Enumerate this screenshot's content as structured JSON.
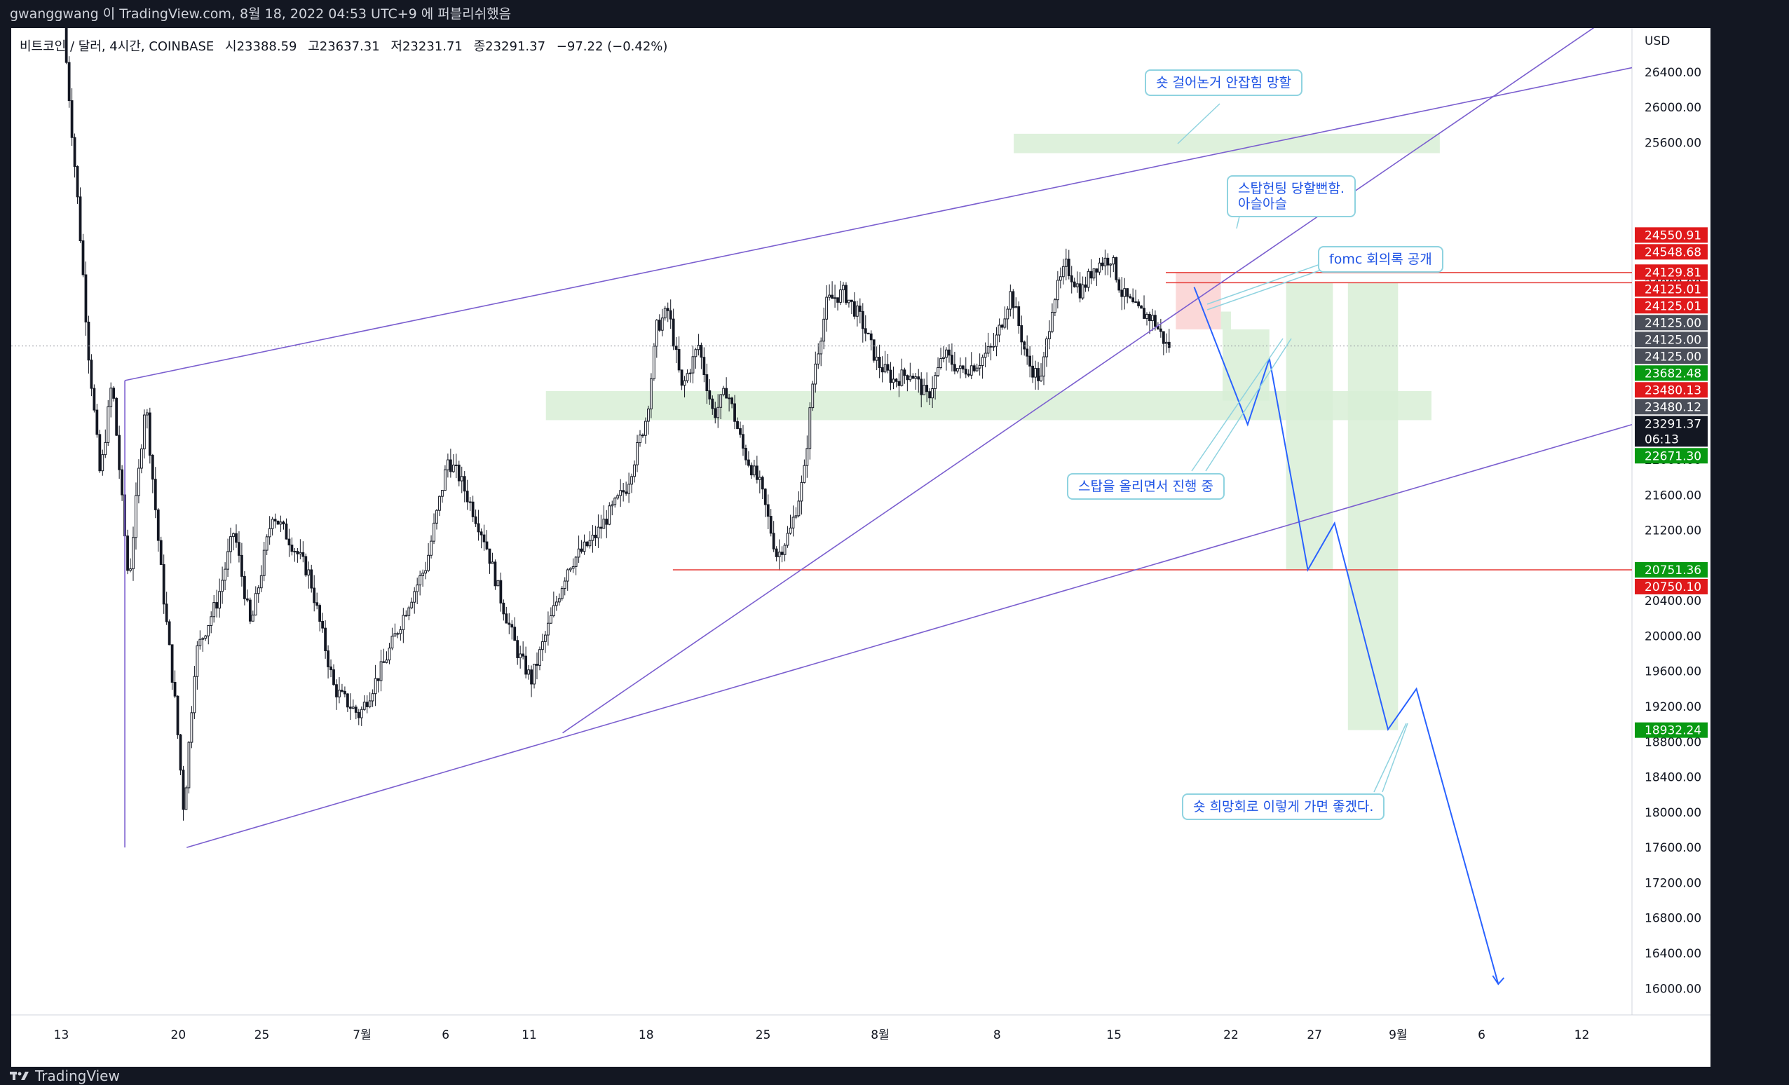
{
  "header": {
    "text": "gwanggwang 이 TradingView.com, 8월 18, 2022 04:53 UTC+9 에 퍼블리쉬했음"
  },
  "symbol": {
    "name": "비트코인 / 달러, 4시간, COINBASE",
    "open": "시23388.59",
    "high": "고23637.31",
    "low": "저23231.71",
    "close": "종23291.37",
    "change": "−97.22 (−0.42%)"
  },
  "colors": {
    "up": "#ffffff",
    "down": "#131722",
    "trendline": "#7b5fcf",
    "projection": "#2962ff",
    "zone": "#d8efd6",
    "level": "#e53935",
    "note_border": "#8fd3e0"
  },
  "notes": {
    "short_caught": "숏 걸어논거 안잡힘 망할",
    "stop_hunt_1": "스탑헌팅 당할뻔함.",
    "stop_hunt_2": "아슬아슬",
    "fomc": "fomc 회의록 공개",
    "raising_stop": "스탑을 올리면서 진행 중",
    "short_hope": "숏 희망회로 이렇게 가면 좋겠다."
  },
  "footer": {
    "brand": "TradingView"
  },
  "chart_data": {
    "type": "candlestick",
    "title": "비트코인 / 달러, 4시간, COINBASE",
    "ylabel": "USD",
    "y_ticks": [
      16000,
      16400,
      16800,
      17200,
      17600,
      18000,
      18400,
      18800,
      19200,
      19600,
      20000,
      20400,
      20800,
      21200,
      21600,
      22000,
      22400,
      22800,
      23200,
      23600,
      24000,
      24400,
      24800,
      25200,
      25600,
      26000,
      26400
    ],
    "y_tick_labels": [
      "16000.00",
      "16400.00",
      "16800.00",
      "17200.00",
      "17600.00",
      "18000.00",
      "18400.00",
      "18800.00",
      "19200.00",
      "19600.00",
      "20000.00",
      "20400.00",
      "",
      "21200.00",
      "21600.00",
      "22000.00",
      "22400.00",
      "22800.00",
      "",
      "",
      "24000.00",
      "",
      "",
      "",
      "25600.00",
      "26000.00",
      "26400.00"
    ],
    "ylim": [
      15700,
      26900
    ],
    "x_tick_labels": [
      "13",
      "20",
      "25",
      "7월",
      "6",
      "11",
      "18",
      "25",
      "8월",
      "8",
      "15",
      "22",
      "27",
      "9월",
      "6",
      "12"
    ],
    "x_tick_days": [
      0,
      7,
      12,
      18,
      23,
      28,
      35,
      42,
      49,
      56,
      63,
      70,
      75,
      80,
      85,
      91
    ],
    "x_range_days": [
      -3,
      94
    ],
    "price_labels": [
      {
        "text": "24550.91",
        "value": 24550.91,
        "color": "red"
      },
      {
        "text": "24548.68",
        "value": 24548.68,
        "color": "red"
      },
      {
        "text": "24129.81",
        "value": 24129.81,
        "color": "red"
      },
      {
        "text": "24125.01",
        "value": 24125.01,
        "color": "red"
      },
      {
        "text": "24125.01",
        "value": 24125.01,
        "color": "red"
      },
      {
        "text": "24125.00",
        "value": 24125.0,
        "color": "gray"
      },
      {
        "text": "24125.00",
        "value": 24125.0,
        "color": "gray"
      },
      {
        "text": "24125.00",
        "value": 24125.0,
        "color": "gray"
      },
      {
        "text": "23682.48",
        "value": 23682.48,
        "color": "green"
      },
      {
        "text": "23480.13",
        "value": 23480.13,
        "color": "red"
      },
      {
        "text": "23480.12",
        "value": 23480.12,
        "color": "gray"
      },
      {
        "text": "23291.37",
        "value": 23291.37,
        "color": "black",
        "sub": "06:13"
      },
      {
        "text": "22671.30",
        "value": 22671.3,
        "color": "green"
      },
      {
        "text": "20751.36",
        "value": 20751.36,
        "color": "green"
      },
      {
        "text": "20750.10",
        "value": 20750.1,
        "color": "red"
      },
      {
        "text": "18932.24",
        "value": 18932.24,
        "color": "green"
      }
    ],
    "ohlc_anchors": [
      {
        "day": 0.3,
        "price": 26900
      },
      {
        "day": 1.2,
        "price": 24800
      },
      {
        "day": 1.8,
        "price": 23200
      },
      {
        "day": 2.5,
        "price": 21800
      },
      {
        "day": 3.2,
        "price": 22900
      },
      {
        "day": 4.2,
        "price": 20600
      },
      {
        "day": 5.2,
        "price": 22700
      },
      {
        "day": 6.2,
        "price": 20600
      },
      {
        "day": 7.0,
        "price": 19200
      },
      {
        "day": 7.5,
        "price": 18000
      },
      {
        "day": 8.2,
        "price": 19800
      },
      {
        "day": 9.5,
        "price": 20400
      },
      {
        "day": 10.5,
        "price": 21200
      },
      {
        "day": 11.5,
        "price": 20100
      },
      {
        "day": 12.8,
        "price": 21400
      },
      {
        "day": 13.8,
        "price": 21100
      },
      {
        "day": 15.0,
        "price": 20700
      },
      {
        "day": 16.5,
        "price": 19400
      },
      {
        "day": 18.0,
        "price": 19100
      },
      {
        "day": 19.5,
        "price": 19700
      },
      {
        "day": 21.0,
        "price": 20400
      },
      {
        "day": 22.0,
        "price": 20800
      },
      {
        "day": 23.3,
        "price": 22000
      },
      {
        "day": 24.0,
        "price": 21800
      },
      {
        "day": 25.5,
        "price": 21100
      },
      {
        "day": 26.5,
        "price": 20400
      },
      {
        "day": 27.5,
        "price": 19800
      },
      {
        "day": 28.3,
        "price": 19500
      },
      {
        "day": 29.3,
        "price": 20100
      },
      {
        "day": 30.5,
        "price": 20800
      },
      {
        "day": 32.0,
        "price": 21100
      },
      {
        "day": 33.0,
        "price": 21400
      },
      {
        "day": 34.0,
        "price": 21700
      },
      {
        "day": 35.2,
        "price": 22500
      },
      {
        "day": 35.8,
        "price": 23500
      },
      {
        "day": 36.5,
        "price": 23700
      },
      {
        "day": 37.3,
        "price": 22800
      },
      {
        "day": 38.3,
        "price": 23300
      },
      {
        "day": 39.2,
        "price": 22500
      },
      {
        "day": 40.0,
        "price": 22800
      },
      {
        "day": 41.0,
        "price": 22100
      },
      {
        "day": 42.0,
        "price": 21700
      },
      {
        "day": 43.0,
        "price": 20900
      },
      {
        "day": 43.8,
        "price": 21200
      },
      {
        "day": 44.6,
        "price": 21800
      },
      {
        "day": 45.2,
        "price": 23000
      },
      {
        "day": 46.0,
        "price": 23800
      },
      {
        "day": 47.0,
        "price": 23900
      },
      {
        "day": 48.0,
        "price": 23600
      },
      {
        "day": 49.0,
        "price": 23100
      },
      {
        "day": 50.0,
        "price": 22900
      },
      {
        "day": 51.0,
        "price": 23000
      },
      {
        "day": 52.0,
        "price": 22700
      },
      {
        "day": 53.0,
        "price": 23200
      },
      {
        "day": 54.0,
        "price": 23000
      },
      {
        "day": 55.0,
        "price": 23100
      },
      {
        "day": 56.0,
        "price": 23300
      },
      {
        "day": 57.0,
        "price": 23900
      },
      {
        "day": 58.0,
        "price": 23100
      },
      {
        "day": 58.8,
        "price": 22900
      },
      {
        "day": 59.5,
        "price": 23800
      },
      {
        "day": 60.3,
        "price": 24200
      },
      {
        "day": 61.2,
        "price": 23900
      },
      {
        "day": 62.0,
        "price": 24200
      },
      {
        "day": 63.0,
        "price": 24300
      },
      {
        "day": 63.6,
        "price": 23900
      },
      {
        "day": 64.5,
        "price": 23700
      },
      {
        "day": 65.5,
        "price": 23600
      },
      {
        "day": 66.3,
        "price": 23300
      }
    ],
    "zones": [
      {
        "day_from": 57.0,
        "day_to": 82.5,
        "low": 25480,
        "high": 25700,
        "kind": "green"
      },
      {
        "day_from": 29.0,
        "day_to": 82.0,
        "low": 22450,
        "high": 22780,
        "kind": "green"
      },
      {
        "day_from": 66.7,
        "day_to": 69.4,
        "low": 23480,
        "high": 24125,
        "kind": "red"
      },
      {
        "day_from": 69.4,
        "day_to": 70.0,
        "low": 23480,
        "high": 23682,
        "kind": "green"
      },
      {
        "day_from": 69.5,
        "day_to": 72.3,
        "low": 22671,
        "high": 23480,
        "kind": "green"
      },
      {
        "day_from": 73.3,
        "day_to": 76.1,
        "low": 20751,
        "high": 24010,
        "kind": "green"
      },
      {
        "day_from": 77.0,
        "day_to": 80.0,
        "low": 18932,
        "high": 24010,
        "kind": "green"
      }
    ],
    "levels": [
      {
        "value": 24125,
        "day_from": 66.1
      },
      {
        "value": 24010,
        "day_from": 66.1
      },
      {
        "value": 20751,
        "day_from": 36.6
      },
      {
        "value": 23291.37,
        "day_from": -3,
        "dotted": true
      }
    ],
    "trendlines": [
      {
        "from": [
          3.8,
          22900
        ],
        "to": [
          94,
          26450
        ]
      },
      {
        "from": [
          7.5,
          17600
        ],
        "to": [
          94,
          22400
        ]
      },
      {
        "from": [
          30.0,
          18900
        ],
        "to": [
          94,
          27200
        ]
      },
      {
        "from": [
          3.8,
          22900
        ],
        "to": [
          3.8,
          17600
        ]
      }
    ],
    "projection": [
      [
        67.8,
        23960
      ],
      [
        71.0,
        22400
      ],
      [
        72.3,
        23150
      ],
      [
        74.6,
        20751
      ],
      [
        76.2,
        21280
      ],
      [
        79.4,
        18940
      ],
      [
        81.1,
        19400
      ],
      [
        86.0,
        16050
      ]
    ]
  }
}
